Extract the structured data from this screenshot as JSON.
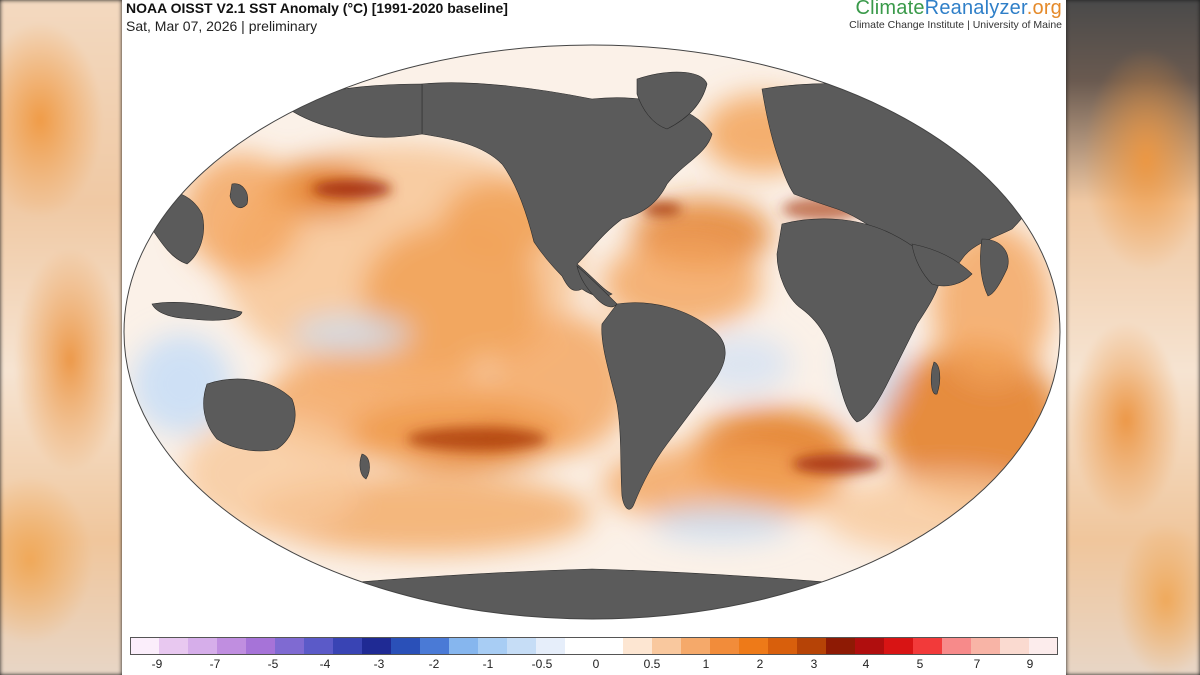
{
  "header": {
    "title": "NOAA OISST V2.1 SST Anomaly (°C) [1991-2020 baseline]",
    "subtitle": "Sat, Mar 07, 2026 | preliminary"
  },
  "logo": {
    "part1": "Climate",
    "part2": "Reanalyzer",
    "part3": ".org",
    "subtitle": "Climate Change Institute | University of Maine"
  },
  "colorbar": {
    "colors": [
      "#fbeefb",
      "#e8c8f0",
      "#d6aeea",
      "#c08ee0",
      "#a673d8",
      "#7f6ad2",
      "#5b5ac8",
      "#3944b4",
      "#1f2a94",
      "#2a50b8",
      "#4a7ad6",
      "#86b6ee",
      "#a8cdf4",
      "#c6ddf6",
      "#e6eefa",
      "#ffffff",
      "#ffffff",
      "#fde6d2",
      "#f9c89e",
      "#f5a96a",
      "#f28c3a",
      "#ee7a18",
      "#d85f0c",
      "#b64306",
      "#8e1a04",
      "#b00e0e",
      "#d81414",
      "#f23a3a",
      "#f78a8a",
      "#f8b4a6",
      "#fadad0",
      "#fcecec"
    ],
    "tick_labels": [
      "-9",
      "-7",
      "-5",
      "-4",
      "-3",
      "-2",
      "-1",
      "-0.5",
      "0",
      "0.5",
      "1",
      "2",
      "3",
      "4",
      "5",
      "7",
      "9"
    ]
  },
  "map_colors": {
    "land": "#5b5b5b",
    "ocean_warm_light": "#f7c89a",
    "ocean_warm": "#f2a35a",
    "ocean_warm_dark": "#e27a20",
    "ocean_hot": "#a32e08",
    "ocean_cool": "#c9def6",
    "ocean_neutral": "#fbf1e8"
  }
}
